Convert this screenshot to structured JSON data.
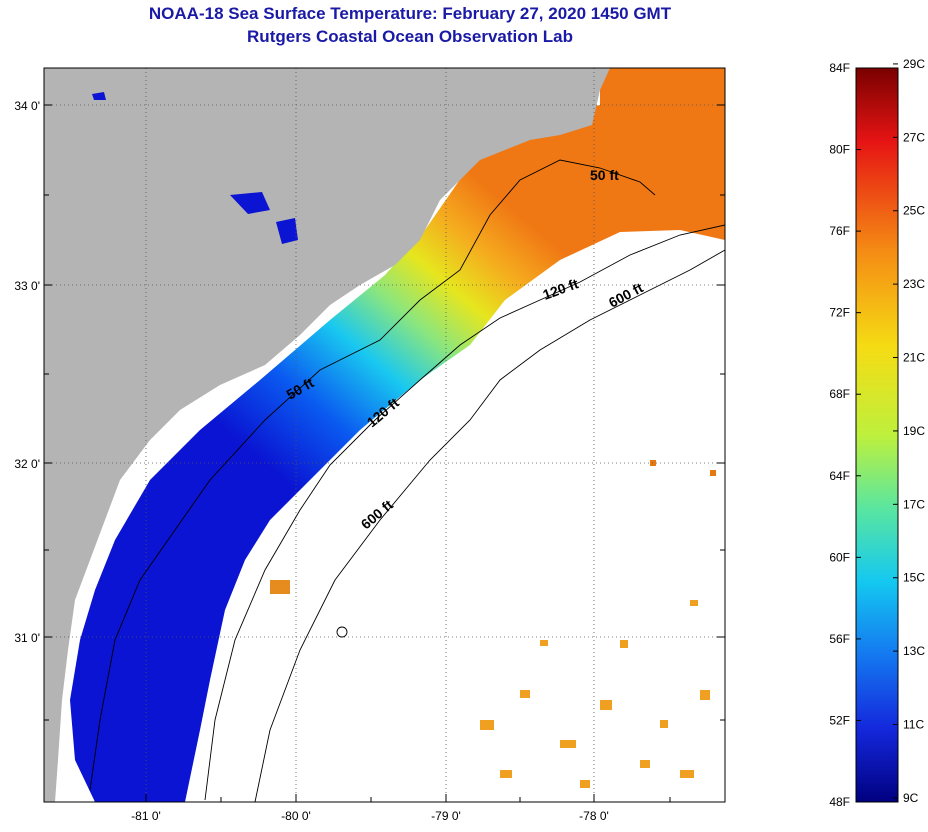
{
  "title": "NOAA-18 Sea Surface Temperature:  February 27, 2020 1450 GMT",
  "subtitle": "Rutgers Coastal Ocean Observation Lab",
  "lat_ticks": [
    "34 0'",
    "33 0'",
    "32 0'",
    "31 0'"
  ],
  "lon_ticks": [
    "-81 0'",
    "-80 0'",
    "-79 0'",
    "-78 0'"
  ],
  "contour_labels": [
    "50 ft",
    "120 ft",
    "600 ft",
    "50 ft",
    "120 ft",
    "600 ft"
  ],
  "colorbar": {
    "fahrenheit": [
      "84F",
      "80F",
      "76F",
      "72F",
      "68F",
      "64F",
      "60F",
      "56F",
      "52F",
      "48F"
    ],
    "celsius": [
      "29C",
      "27C",
      "25C",
      "23C",
      "21C",
      "19C",
      "17C",
      "15C",
      "13C",
      "11C",
      "9C"
    ]
  },
  "colors": {
    "land": "#b4b4b4",
    "title": "#1a1aa6",
    "cold": "#0a14d2",
    "warm": "#f08a1e"
  }
}
